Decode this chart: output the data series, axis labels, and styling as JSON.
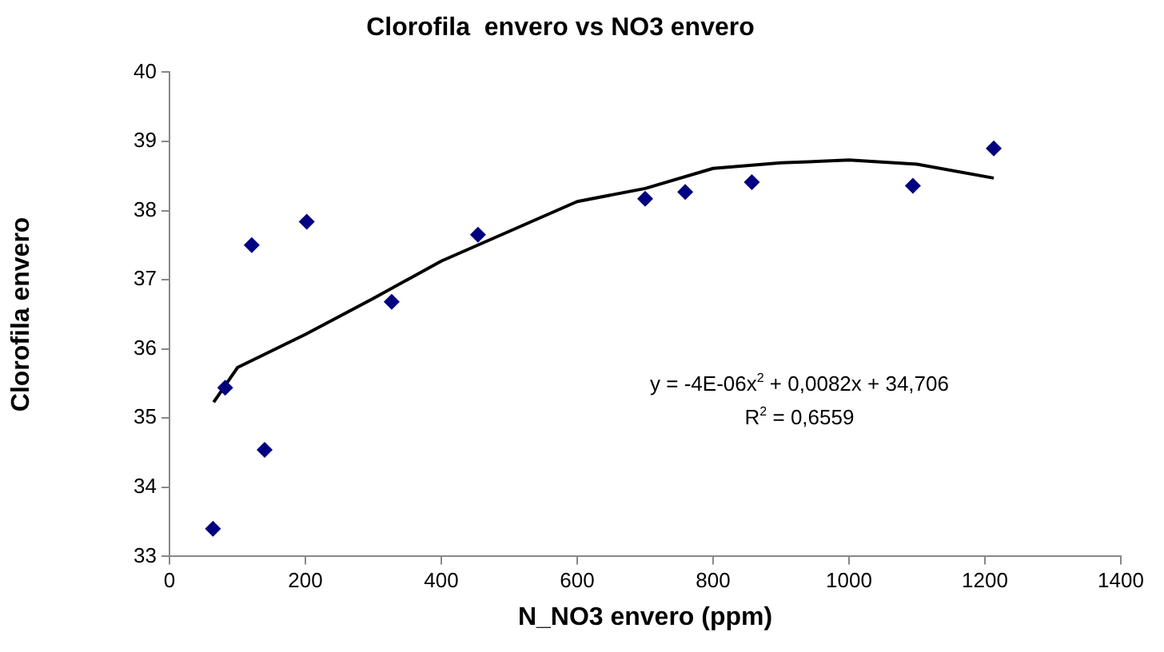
{
  "chart_data": {
    "type": "scatter",
    "title": "Clorofila  envero vs NO3 envero",
    "xlabel": "N_NO3 envero (ppm)",
    "ylabel": "Clorofila envero",
    "xlim": [
      0,
      1400
    ],
    "xticks": [
      0,
      200,
      400,
      600,
      800,
      1000,
      1200,
      1400
    ],
    "ylim": [
      33,
      40
    ],
    "yticks": [
      33,
      34,
      35,
      36,
      37,
      38,
      39,
      40
    ],
    "grid": false,
    "legend": false,
    "marker": "diamond",
    "series": [
      {
        "type": "scatter",
        "color": "#000080",
        "x": [
          64,
          82,
          121,
          140,
          202,
          327,
          454,
          700,
          759,
          857,
          1094,
          1213
        ],
        "values": [
          33.4,
          35.44,
          37.5,
          34.54,
          37.84,
          36.68,
          37.65,
          38.17,
          38.27,
          38.41,
          38.36,
          38.9
        ]
      },
      {
        "type": "line",
        "color": "#000000",
        "marker": "none",
        "line_style": "solid",
        "x": [
          65,
          100,
          200,
          300,
          400,
          500,
          600,
          700,
          800,
          900,
          1000,
          1100,
          1213
        ],
        "values": [
          35.23,
          35.73,
          36.21,
          36.73,
          37.27,
          37.7,
          38.13,
          38.32,
          38.61,
          38.69,
          38.73,
          38.67,
          38.47
        ]
      }
    ],
    "annotations": [
      "y = -4E-06x$^{2}$ + 0,0082x + 34,706",
      "R$^{2}$ = 0,6559"
    ]
  }
}
